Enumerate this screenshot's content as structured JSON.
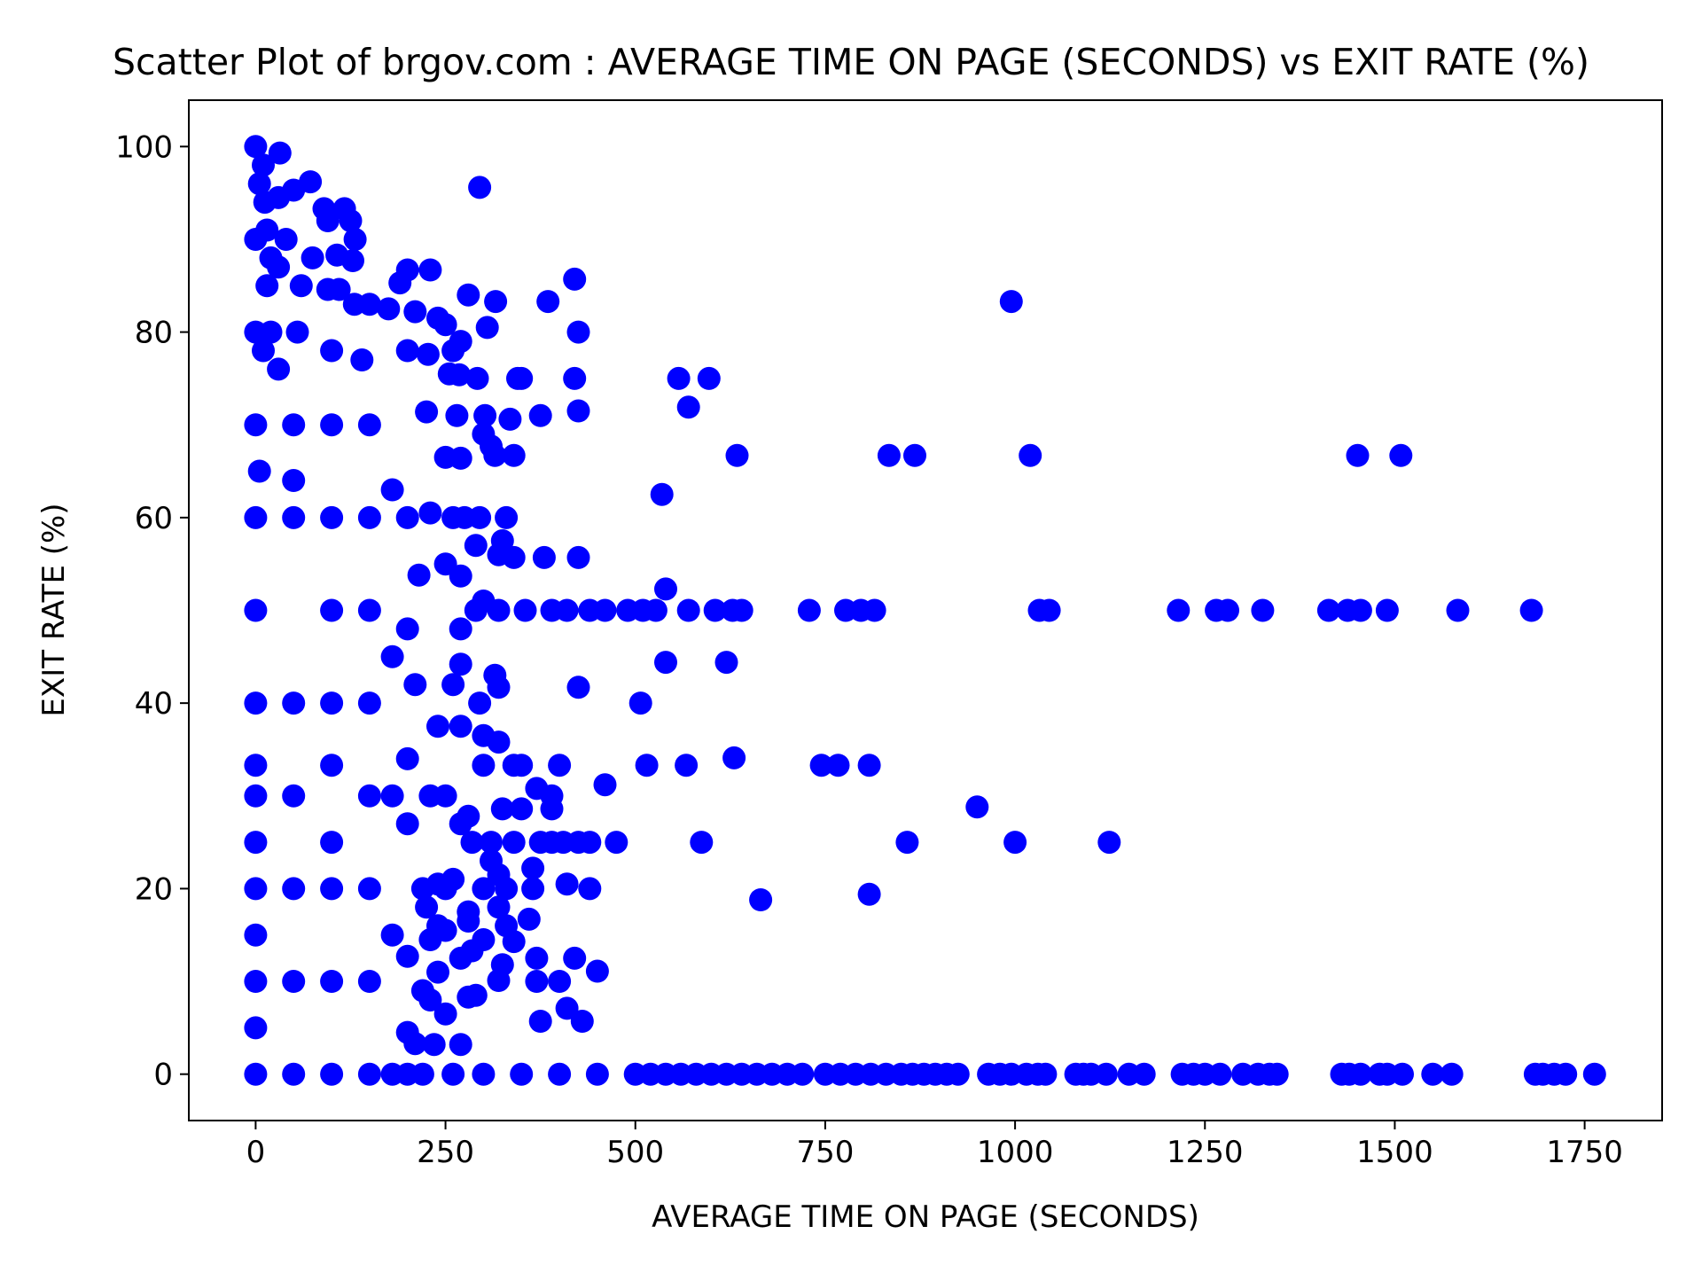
{
  "chart_data": {
    "type": "scatter",
    "title": "Scatter Plot of brgov.com : AVERAGE TIME ON PAGE (SECONDS) vs EXIT RATE (%)",
    "xlabel": "AVERAGE TIME ON PAGE (SECONDS)",
    "ylabel": "EXIT RATE (%)",
    "xlim": [
      -88,
      1852
    ],
    "ylim": [
      -5,
      105
    ],
    "xticks": [
      0,
      250,
      500,
      750,
      1000,
      1250,
      1500,
      1750
    ],
    "yticks": [
      0,
      20,
      40,
      60,
      80,
      100
    ],
    "grid": false,
    "legend": "none",
    "marker_color": "#0000ff",
    "series": [
      {
        "values": [
          [
            0,
            100
          ],
          [
            32,
            99.3
          ],
          [
            10,
            98
          ],
          [
            5,
            96
          ],
          [
            72,
            96.2
          ],
          [
            295,
            95.6
          ],
          [
            50,
            95.3
          ],
          [
            12,
            94
          ],
          [
            30,
            94.5
          ],
          [
            90,
            93.3
          ],
          [
            117,
            93.3
          ],
          [
            95,
            92
          ],
          [
            125,
            92
          ],
          [
            15,
            91
          ],
          [
            40,
            90
          ],
          [
            131,
            90
          ],
          [
            20,
            88
          ],
          [
            75,
            88
          ],
          [
            107,
            88.3
          ],
          [
            128,
            87.7
          ],
          [
            30,
            87
          ],
          [
            230,
            86.7
          ],
          [
            200,
            86.7
          ],
          [
            420,
            85.7
          ],
          [
            15,
            85
          ],
          [
            60,
            85
          ],
          [
            95,
            84.6
          ],
          [
            110,
            84.6
          ],
          [
            190,
            85.3
          ],
          [
            280,
            84
          ],
          [
            316,
            83.3
          ],
          [
            385,
            83.3
          ],
          [
            995,
            83.3
          ],
          [
            130,
            83
          ],
          [
            150,
            83
          ],
          [
            175,
            82.5
          ],
          [
            210,
            82.2
          ],
          [
            240,
            81.5
          ],
          [
            20,
            80
          ],
          [
            55,
            80
          ],
          [
            250,
            80.8
          ],
          [
            305,
            80.5
          ],
          [
            425,
            80
          ],
          [
            270,
            79
          ],
          [
            10,
            78
          ],
          [
            100,
            78
          ],
          [
            200,
            78
          ],
          [
            260,
            78
          ],
          [
            227,
            77.6
          ],
          [
            140,
            77
          ],
          [
            30,
            76
          ],
          [
            255,
            75.5
          ],
          [
            268,
            75.4
          ],
          [
            292,
            75
          ],
          [
            345,
            75
          ],
          [
            350,
            75
          ],
          [
            420,
            75
          ],
          [
            557,
            75
          ],
          [
            597,
            75
          ],
          [
            570,
            71.9
          ],
          [
            225,
            71.4
          ],
          [
            265,
            71
          ],
          [
            302,
            71
          ],
          [
            335,
            70.6
          ],
          [
            375,
            71
          ],
          [
            425,
            71.5
          ],
          [
            300,
            69
          ],
          [
            310,
            67.7
          ],
          [
            315,
            66.7
          ],
          [
            340,
            66.7
          ],
          [
            634,
            66.7
          ],
          [
            834,
            66.7
          ],
          [
            868,
            66.7
          ],
          [
            1020,
            66.7
          ],
          [
            1451,
            66.7
          ],
          [
            1508,
            66.7
          ],
          [
            250,
            66.5
          ],
          [
            270,
            66.4
          ],
          [
            5,
            65
          ],
          [
            50,
            64
          ],
          [
            180,
            63
          ],
          [
            535,
            62.5
          ],
          [
            230,
            60.5
          ],
          [
            260,
            60
          ],
          [
            275,
            60
          ],
          [
            295,
            60
          ],
          [
            330,
            60
          ],
          [
            290,
            57
          ],
          [
            325,
            57.5
          ],
          [
            320,
            56
          ],
          [
            340,
            55.7
          ],
          [
            380,
            55.7
          ],
          [
            425,
            55.7
          ],
          [
            250,
            55
          ],
          [
            270,
            53.7
          ],
          [
            215,
            53.8
          ],
          [
            540,
            52.3
          ],
          [
            300,
            51
          ],
          [
            290,
            50
          ],
          [
            320,
            50
          ],
          [
            355,
            50
          ],
          [
            390,
            50
          ],
          [
            410,
            50
          ],
          [
            440,
            50
          ],
          [
            460,
            50
          ],
          [
            490,
            50
          ],
          [
            510,
            50
          ],
          [
            527,
            50
          ],
          [
            570,
            50
          ],
          [
            605,
            50
          ],
          [
            628,
            50
          ],
          [
            640,
            50
          ],
          [
            729,
            50
          ],
          [
            777,
            50
          ],
          [
            797,
            50
          ],
          [
            815,
            50
          ],
          [
            1032,
            50
          ],
          [
            1045,
            50
          ],
          [
            1215,
            50
          ],
          [
            1265,
            50
          ],
          [
            1280,
            50
          ],
          [
            1326,
            50
          ],
          [
            1413,
            50
          ],
          [
            1438,
            50
          ],
          [
            1455,
            50
          ],
          [
            1490,
            50
          ],
          [
            1583,
            50
          ],
          [
            1680,
            50
          ],
          [
            0,
            50
          ],
          [
            100,
            50
          ],
          [
            200,
            48
          ],
          [
            270,
            48
          ],
          [
            540,
            44.4
          ],
          [
            620,
            44.4
          ],
          [
            270,
            44.2
          ],
          [
            315,
            43
          ],
          [
            320,
            41.7
          ],
          [
            425,
            41.7
          ],
          [
            210,
            42
          ],
          [
            260,
            42
          ],
          [
            507,
            40
          ],
          [
            295,
            40
          ],
          [
            240,
            37.5
          ],
          [
            270,
            37.5
          ],
          [
            300,
            36.5
          ],
          [
            320,
            35.8
          ],
          [
            200,
            34
          ],
          [
            630,
            34.1
          ],
          [
            400,
            33.3
          ],
          [
            515,
            33.3
          ],
          [
            567,
            33.3
          ],
          [
            745,
            33.3
          ],
          [
            767,
            33.3
          ],
          [
            808,
            33.3
          ],
          [
            300,
            33.3
          ],
          [
            340,
            33.3
          ],
          [
            350,
            33.3
          ],
          [
            0,
            33.3
          ],
          [
            100,
            33.3
          ],
          [
            460,
            31.2
          ],
          [
            370,
            30.8
          ],
          [
            390,
            30
          ],
          [
            230,
            30
          ],
          [
            250,
            30
          ],
          [
            325,
            28.6
          ],
          [
            350,
            28.6
          ],
          [
            390,
            28.6
          ],
          [
            950,
            28.8
          ],
          [
            280,
            27.8
          ],
          [
            270,
            27
          ],
          [
            200,
            27
          ],
          [
            285,
            25
          ],
          [
            310,
            25
          ],
          [
            340,
            25
          ],
          [
            375,
            25
          ],
          [
            390,
            25
          ],
          [
            405,
            25
          ],
          [
            425,
            25
          ],
          [
            440,
            25
          ],
          [
            475,
            25
          ],
          [
            587,
            25
          ],
          [
            858,
            25
          ],
          [
            1000,
            25
          ],
          [
            1124,
            25
          ],
          [
            0,
            25
          ],
          [
            100,
            25
          ],
          [
            310,
            23
          ],
          [
            320,
            21.5
          ],
          [
            365,
            22.2
          ],
          [
            260,
            21
          ],
          [
            240,
            20.5
          ],
          [
            220,
            20
          ],
          [
            250,
            20
          ],
          [
            300,
            20
          ],
          [
            330,
            20
          ],
          [
            365,
            20
          ],
          [
            410,
            20.5
          ],
          [
            440,
            20
          ],
          [
            665,
            18.8
          ],
          [
            808,
            19.4
          ],
          [
            225,
            18
          ],
          [
            280,
            17.5
          ],
          [
            320,
            18
          ],
          [
            360,
            16.7
          ],
          [
            280,
            16.5
          ],
          [
            240,
            16
          ],
          [
            330,
            16
          ],
          [
            250,
            15.5
          ],
          [
            300,
            14.5
          ],
          [
            340,
            14.3
          ],
          [
            230,
            14.5
          ],
          [
            200,
            12.7
          ],
          [
            270,
            12.5
          ],
          [
            285,
            13.3
          ],
          [
            370,
            12.5
          ],
          [
            420,
            12.5
          ],
          [
            325,
            11.8
          ],
          [
            320,
            10.1
          ],
          [
            370,
            10
          ],
          [
            400,
            10
          ],
          [
            450,
            11.1
          ],
          [
            240,
            11
          ],
          [
            220,
            9
          ],
          [
            280,
            8.3
          ],
          [
            290,
            8.5
          ],
          [
            230,
            8
          ],
          [
            410,
            7.1
          ],
          [
            250,
            6.5
          ],
          [
            375,
            5.7
          ],
          [
            430,
            5.7
          ],
          [
            200,
            4.5
          ],
          [
            210,
            3.3
          ],
          [
            235,
            3.2
          ],
          [
            270,
            3.2
          ],
          [
            0,
            15
          ],
          [
            0,
            10
          ],
          [
            0,
            5
          ],
          [
            0,
            0
          ],
          [
            0,
            20
          ],
          [
            0,
            30
          ],
          [
            0,
            40
          ],
          [
            0,
            60
          ],
          [
            0,
            70
          ],
          [
            0,
            80
          ],
          [
            0,
            90
          ],
          [
            50,
            70
          ],
          [
            50,
            60
          ],
          [
            50,
            40
          ],
          [
            50,
            30
          ],
          [
            50,
            20
          ],
          [
            50,
            10
          ],
          [
            50,
            0
          ],
          [
            100,
            70
          ],
          [
            100,
            60
          ],
          [
            100,
            40
          ],
          [
            100,
            20
          ],
          [
            100,
            10
          ],
          [
            100,
            0
          ],
          [
            150,
            70
          ],
          [
            150,
            60
          ],
          [
            150,
            50
          ],
          [
            150,
            40
          ],
          [
            150,
            30
          ],
          [
            150,
            20
          ],
          [
            150,
            10
          ],
          [
            150,
            0
          ],
          [
            180,
            45
          ],
          [
            180,
            30
          ],
          [
            180,
            15
          ],
          [
            180,
            0
          ],
          [
            200,
            60
          ],
          [
            200,
            0
          ],
          [
            220,
            0
          ],
          [
            260,
            0
          ],
          [
            300,
            0
          ],
          [
            350,
            0
          ],
          [
            400,
            0
          ],
          [
            450,
            0
          ],
          [
            500,
            0
          ],
          [
            520,
            0
          ],
          [
            540,
            0
          ],
          [
            560,
            0
          ],
          [
            580,
            0
          ],
          [
            600,
            0
          ],
          [
            620,
            0
          ],
          [
            640,
            0
          ],
          [
            660,
            0
          ],
          [
            680,
            0
          ],
          [
            700,
            0
          ],
          [
            720,
            0
          ],
          [
            750,
            0
          ],
          [
            770,
            0
          ],
          [
            790,
            0
          ],
          [
            810,
            0
          ],
          [
            830,
            0
          ],
          [
            850,
            0
          ],
          [
            865,
            0
          ],
          [
            880,
            0
          ],
          [
            895,
            0
          ],
          [
            910,
            0
          ],
          [
            925,
            0
          ],
          [
            965,
            0
          ],
          [
            980,
            0
          ],
          [
            995,
            0
          ],
          [
            1015,
            0
          ],
          [
            1030,
            0
          ],
          [
            1040,
            0
          ],
          [
            1080,
            0
          ],
          [
            1090,
            0
          ],
          [
            1100,
            0
          ],
          [
            1120,
            0
          ],
          [
            1150,
            0
          ],
          [
            1170,
            0
          ],
          [
            1220,
            0
          ],
          [
            1235,
            0
          ],
          [
            1250,
            0
          ],
          [
            1270,
            0
          ],
          [
            1300,
            0
          ],
          [
            1320,
            0
          ],
          [
            1335,
            0
          ],
          [
            1345,
            0
          ],
          [
            1430,
            0
          ],
          [
            1440,
            0
          ],
          [
            1455,
            0
          ],
          [
            1480,
            0
          ],
          [
            1490,
            0
          ],
          [
            1510,
            0
          ],
          [
            1550,
            0
          ],
          [
            1575,
            0
          ],
          [
            1685,
            0
          ],
          [
            1695,
            0
          ],
          [
            1710,
            0
          ],
          [
            1725,
            0
          ],
          [
            1763,
            0
          ]
        ]
      }
    ]
  }
}
